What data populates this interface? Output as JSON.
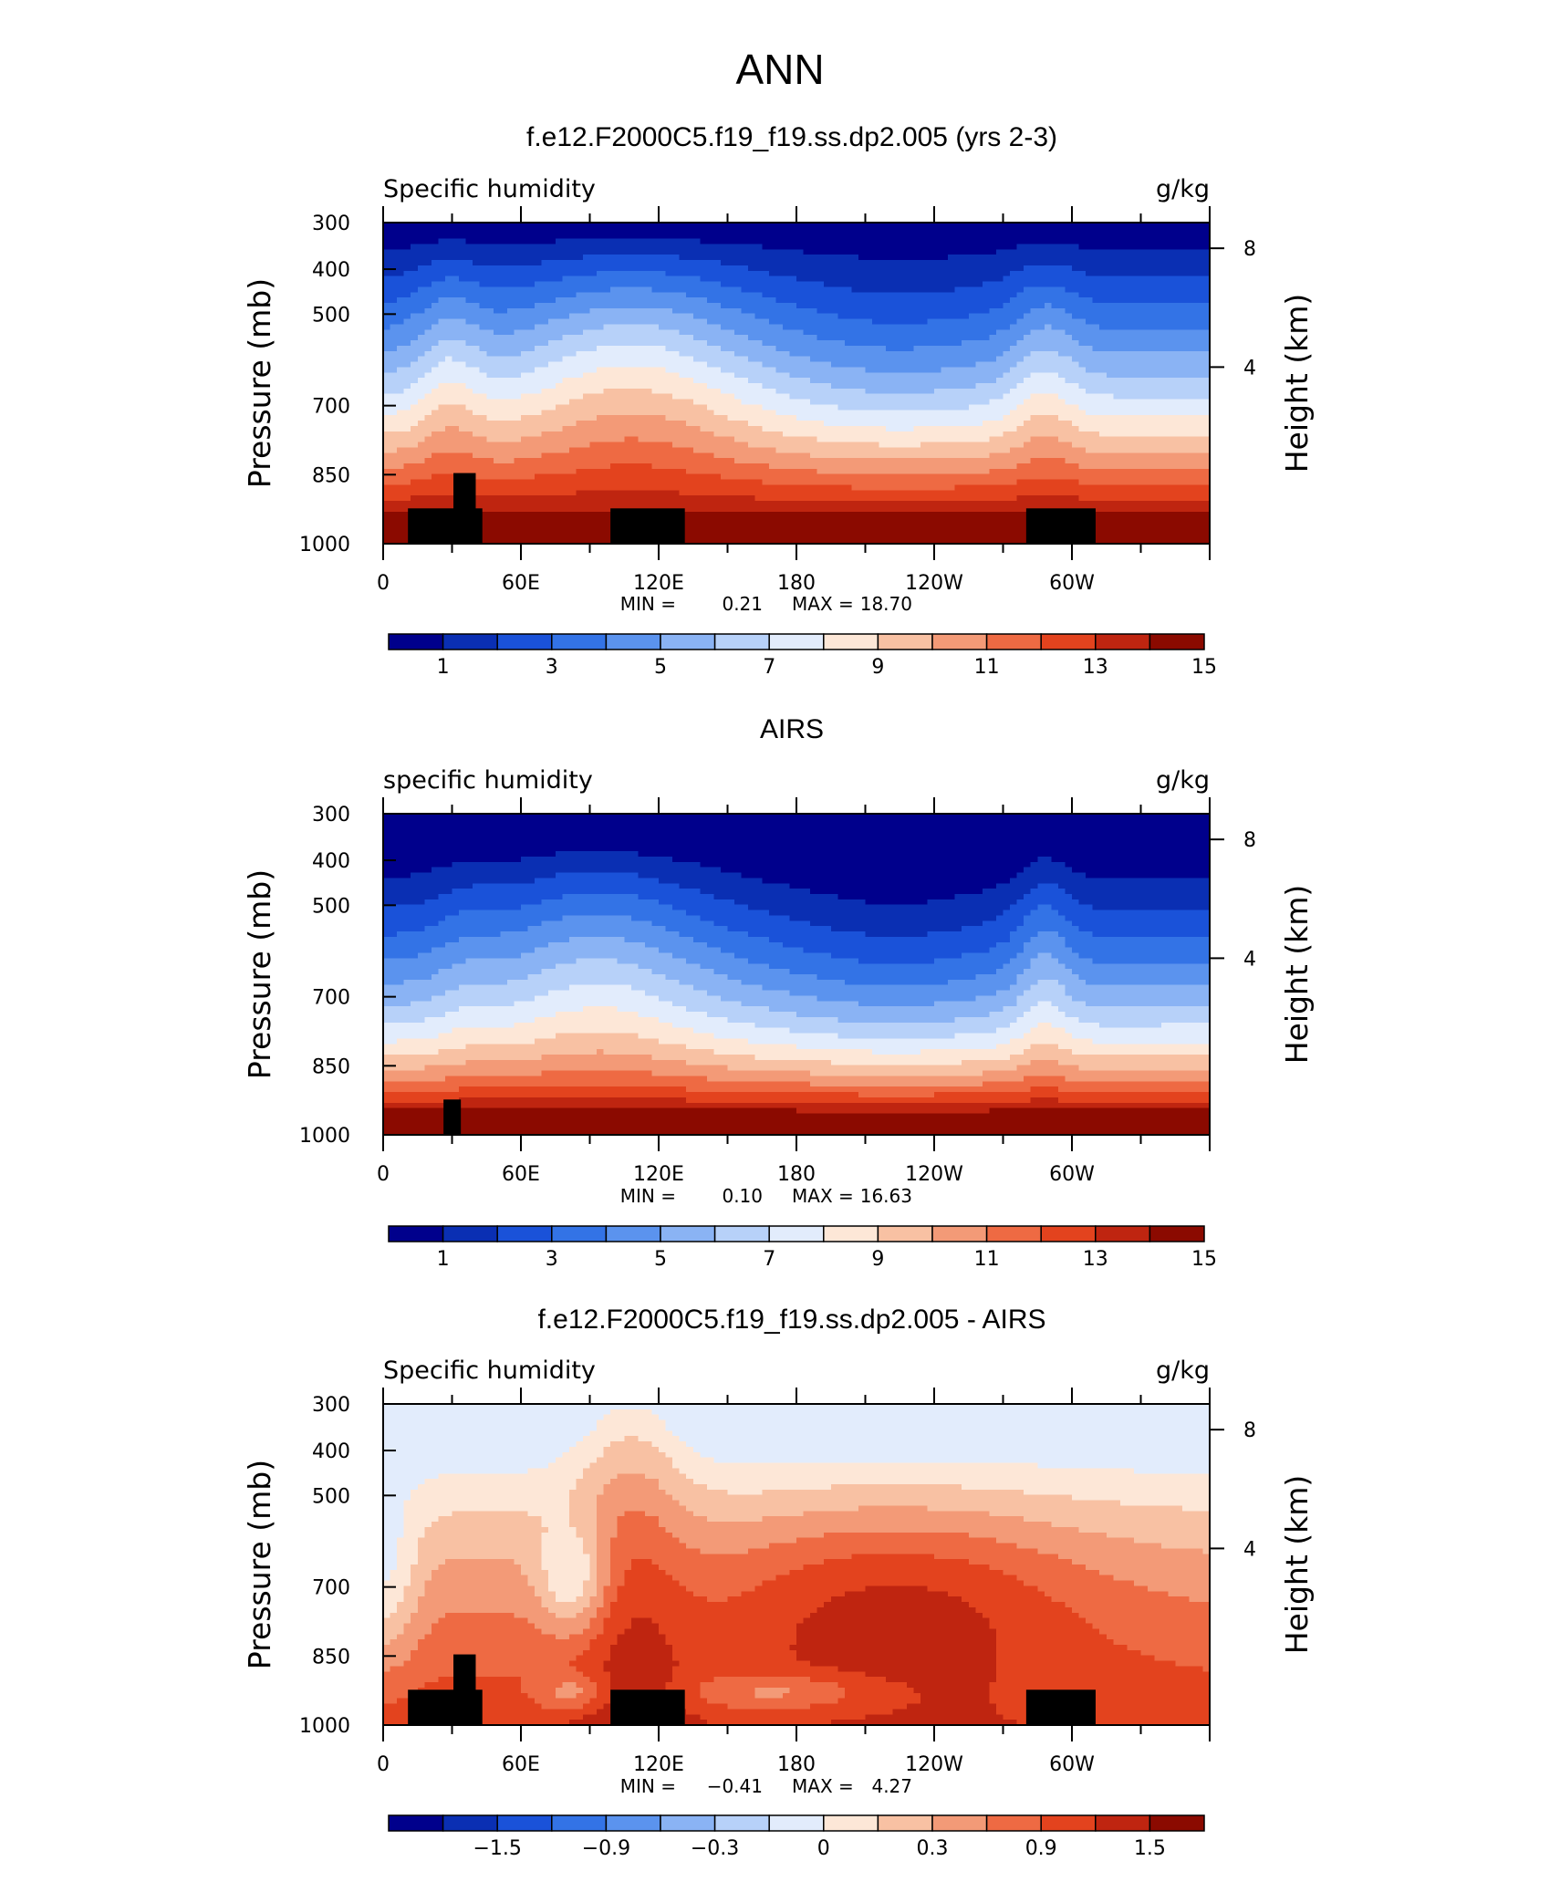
{
  "page_title": "ANN",
  "palette": [
    "#00008c",
    "#0a2fb3",
    "#1a52d9",
    "#3373e6",
    "#5b93ee",
    "#8ab3f4",
    "#b7d1f9",
    "#e2ecfc",
    "#fde7d7",
    "#f8c1a3",
    "#f39a77",
    "#ee6a43",
    "#e3431e",
    "#bf2510",
    "#8b0a00"
  ],
  "chart_data": [
    {
      "type": "heatmap",
      "title": "f.e12.F2000C5.f19_f19.ss.dp2.005 (yrs 2-3)",
      "left_label": "Specific humidity",
      "right_label": "g/kg",
      "ylabel": "Pressure (mb)",
      "y2label": "Height (km)",
      "x_ticks": [
        "0",
        "60E",
        "120E",
        "180",
        "120W",
        "60W"
      ],
      "y_ticks": [
        "300",
        "400",
        "500",
        "700",
        "850",
        "1000"
      ],
      "y2_ticks": [
        "8",
        "4"
      ],
      "stats": {
        "min_label": "MIN =",
        "min": "0.21",
        "max_label": "MAX =",
        "max": "18.70"
      },
      "colorbar_labels": [
        "1",
        "3",
        "5",
        "7",
        "9",
        "11",
        "13",
        "15"
      ]
    },
    {
      "type": "heatmap",
      "title": "AIRS",
      "left_label": "specific humidity",
      "right_label": "g/kg",
      "ylabel": "Pressure (mb)",
      "y2label": "Height (km)",
      "x_ticks": [
        "0",
        "60E",
        "120E",
        "180",
        "120W",
        "60W"
      ],
      "y_ticks": [
        "300",
        "400",
        "500",
        "700",
        "850",
        "1000"
      ],
      "y2_ticks": [
        "8",
        "4"
      ],
      "stats": {
        "min_label": "MIN =",
        "min": "0.10",
        "max_label": "MAX =",
        "max": "16.63"
      },
      "colorbar_labels": [
        "1",
        "3",
        "5",
        "7",
        "9",
        "11",
        "13",
        "15"
      ]
    },
    {
      "type": "heatmap",
      "title": "f.e12.F2000C5.f19_f19.ss.dp2.005 - AIRS",
      "left_label": "Specific humidity",
      "right_label": "g/kg",
      "ylabel": "Pressure (mb)",
      "y2label": "Height (km)",
      "x_ticks": [
        "0",
        "60E",
        "120E",
        "180",
        "120W",
        "60W"
      ],
      "y_ticks": [
        "300",
        "400",
        "500",
        "700",
        "850",
        "1000"
      ],
      "y2_ticks": [
        "8",
        "4"
      ],
      "stats": {
        "min_label": "MIN =",
        "min": "−0.41",
        "max_label": "MAX =",
        "max": "4.27"
      },
      "colorbar_labels": [
        "−1.5",
        "−0.9",
        "−0.3",
        "0",
        "0.3",
        "0.9",
        "1.5"
      ]
    }
  ]
}
